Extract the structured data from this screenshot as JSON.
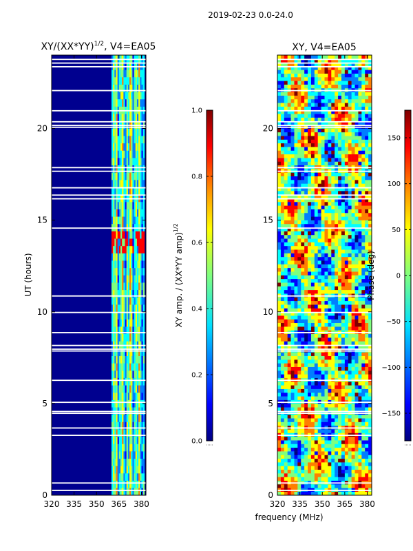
{
  "figure_title": "2019-02-23 0.0-24.0",
  "xlabel": "frequency (MHz)",
  "colors": {
    "background_panel": "#00008f",
    "gap_row": "#ffffff",
    "jet": [
      "#00007f",
      "#0000ff",
      "#007fff",
      "#00ffff",
      "#7fff7f",
      "#ffff00",
      "#ff7f00",
      "#ff0000",
      "#7f0000"
    ]
  },
  "chart_data": [
    {
      "type": "heatmap",
      "name": "amplitude-ratio",
      "title": "XY/(XX*YY)",
      "title_exp": "1/2",
      "title_suffix": ", V4=EA05",
      "xlabel": "",
      "ylabel": "UT (hours)",
      "xlim": [
        320,
        383
      ],
      "ylim": [
        0,
        24
      ],
      "xticks": [
        "320",
        "335",
        "350",
        "365",
        "380"
      ],
      "xtick_values": [
        320,
        335,
        350,
        365,
        380
      ],
      "yticks": [
        "0",
        "5",
        "10",
        "15",
        "20"
      ],
      "ytick_values": [
        0,
        5,
        10,
        15,
        20
      ],
      "active_band_mhz": [
        360,
        382
      ],
      "flagged_band_mhz": [
        320,
        360
      ],
      "colorbar": {
        "label": "XY amp. / (XX*YY amp)",
        "label_exp": "1/2",
        "range": [
          0.0,
          1.0
        ],
        "ticks": [
          "0.0",
          "0.2",
          "0.4",
          "0.6",
          "0.8",
          "1.0"
        ],
        "tick_values": [
          0.0,
          0.2,
          0.4,
          0.6,
          0.8,
          1.0
        ]
      }
    },
    {
      "type": "heatmap",
      "name": "phase",
      "title": "XY, V4=EA05",
      "xlabel": "",
      "ylabel": "",
      "xlim": [
        320,
        383
      ],
      "ylim": [
        0,
        24
      ],
      "xticks": [
        "320",
        "335",
        "350",
        "365",
        "380"
      ],
      "xtick_values": [
        320,
        335,
        350,
        365,
        380
      ],
      "yticks": [
        "0",
        "5",
        "10",
        "15",
        "20"
      ],
      "ytick_values": [
        0,
        5,
        10,
        15,
        20
      ],
      "colorbar": {
        "label": "Phase (deg)",
        "range": [
          -180,
          180
        ],
        "ticks": [
          "−150",
          "−100",
          "−50",
          "0",
          "50",
          "100",
          "150"
        ],
        "tick_values": [
          -150,
          -100,
          -50,
          0,
          50,
          100,
          150
        ]
      }
    }
  ],
  "icons": {
    "colorbar_extend_marks": "dotted-underline"
  }
}
